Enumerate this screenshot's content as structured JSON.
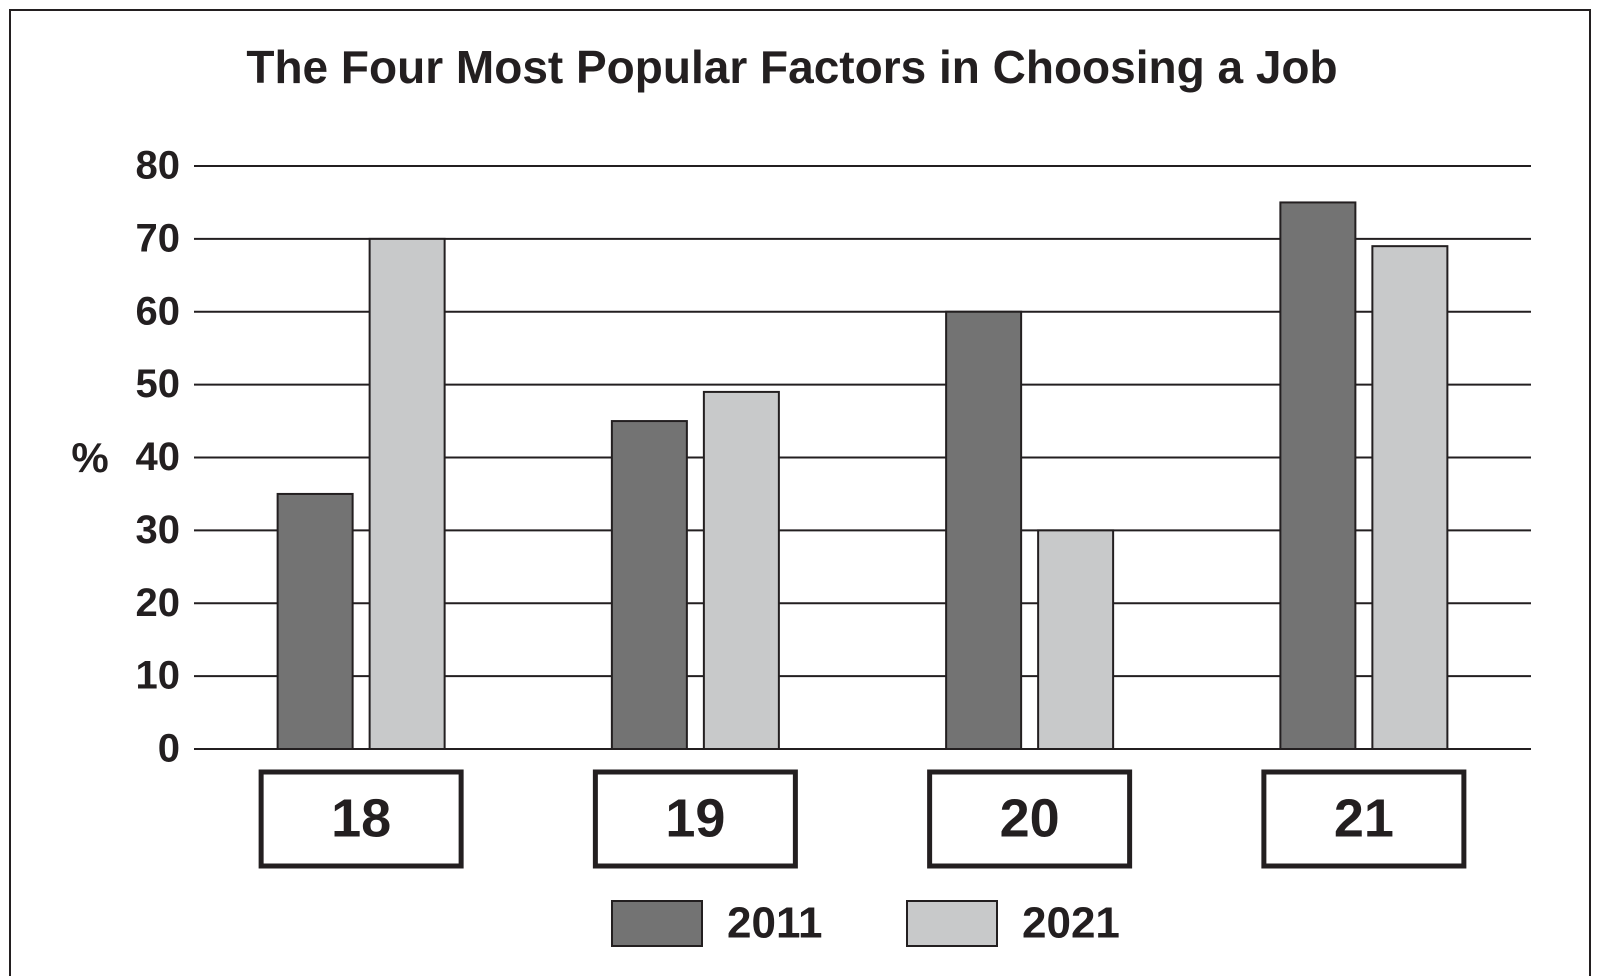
{
  "chart_data": {
    "type": "bar",
    "title": "The Four Most Popular Factors in Choosing a Job",
    "y_label": "%",
    "categories": [
      "18",
      "19",
      "20",
      "21"
    ],
    "series": [
      {
        "name": "2011",
        "color": "#737373",
        "values": [
          35,
          45,
          60,
          75
        ]
      },
      {
        "name": "2021",
        "color": "#c8c9ca",
        "values": [
          70,
          49,
          30,
          69
        ]
      }
    ],
    "ylim": [
      0,
      80
    ],
    "yticks": [
      0,
      10,
      20,
      30,
      40,
      50,
      60,
      70,
      80
    ],
    "grid": true,
    "legend": "bottom"
  }
}
